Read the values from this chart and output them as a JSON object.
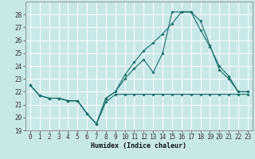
{
  "background_color": "#c8e8e8",
  "grid_color": "#ffffff",
  "line_color": "#1a6e6a",
  "xlabel": "Humidex (Indice chaleur)",
  "xlim": [
    -0.5,
    23.5
  ],
  "ylim": [
    19,
    29
  ],
  "yticks": [
    19,
    20,
    21,
    22,
    23,
    24,
    25,
    26,
    27,
    28
  ],
  "xticks": [
    0,
    1,
    2,
    3,
    4,
    5,
    6,
    7,
    8,
    9,
    10,
    11,
    12,
    13,
    14,
    15,
    16,
    17,
    18,
    19,
    20,
    21,
    22,
    23
  ],
  "series": [
    {
      "x": [
        0,
        1,
        2,
        3,
        4,
        5,
        6,
        7,
        8,
        9,
        10,
        11,
        12,
        13,
        14,
        15,
        16,
        17,
        18,
        19,
        20,
        21,
        22,
        23
      ],
      "y": [
        22.5,
        21.7,
        21.5,
        21.5,
        21.3,
        21.3,
        20.3,
        19.5,
        21.2,
        21.8,
        21.8,
        21.8,
        21.8,
        21.8,
        21.8,
        21.8,
        21.8,
        21.8,
        21.8,
        21.8,
        21.8,
        21.8,
        21.8,
        21.8
      ]
    },
    {
      "x": [
        0,
        1,
        2,
        3,
        4,
        5,
        6,
        7,
        8,
        9,
        10,
        11,
        12,
        13,
        14,
        15,
        16,
        17,
        18,
        19,
        20,
        21,
        22,
        23
      ],
      "y": [
        22.5,
        21.7,
        21.5,
        21.5,
        21.3,
        21.3,
        20.3,
        19.5,
        21.5,
        22.0,
        23.0,
        23.8,
        24.5,
        23.5,
        25.0,
        28.2,
        28.2,
        28.2,
        26.8,
        25.5,
        24.0,
        23.2,
        22.0,
        22.0
      ]
    },
    {
      "x": [
        0,
        1,
        2,
        3,
        4,
        5,
        6,
        7,
        8,
        9,
        10,
        11,
        12,
        13,
        14,
        15,
        16,
        17,
        18,
        19,
        20,
        21,
        22,
        23
      ],
      "y": [
        22.5,
        21.7,
        21.5,
        21.5,
        21.3,
        21.3,
        20.3,
        19.5,
        21.5,
        22.0,
        23.3,
        24.3,
        25.2,
        25.8,
        26.5,
        27.3,
        28.2,
        28.2,
        27.5,
        25.6,
        23.7,
        23.0,
        22.0,
        22.0
      ]
    }
  ]
}
